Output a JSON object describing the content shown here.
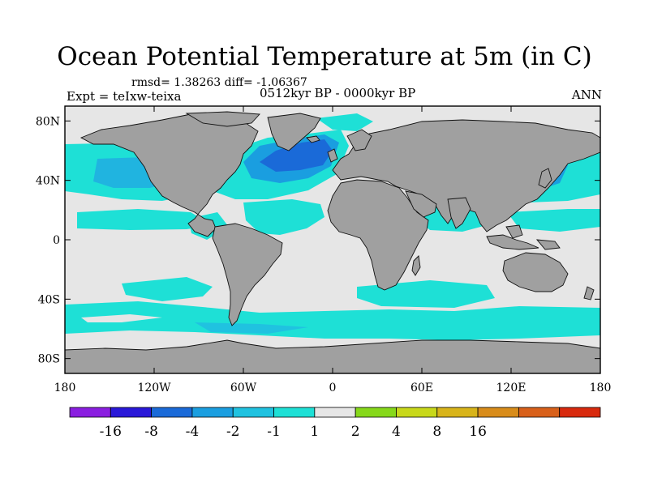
{
  "title": "Ocean Potential Temperature at 5m (in C)",
  "stats": "rmsd= 1.38263 diff= -1.06367",
  "experiment": "Expt = teIxw-teixa",
  "period": "0512kyr BP - 0000kyr BP",
  "season": "ANN",
  "map": {
    "projection": "cylindrical-equidistant",
    "lon_range": [
      -180,
      180
    ],
    "lat_range": [
      -90,
      90
    ],
    "land_color": "#a0a0a0",
    "no_change_color": "#e6e6e6",
    "x_ticks": [
      {
        "lon": -180,
        "label": "180"
      },
      {
        "lon": -120,
        "label": "120W"
      },
      {
        "lon": -60,
        "label": "60W"
      },
      {
        "lon": 0,
        "label": "0"
      },
      {
        "lon": 60,
        "label": "60E"
      },
      {
        "lon": 120,
        "label": "120E"
      },
      {
        "lon": 180,
        "label": "180"
      }
    ],
    "y_ticks": [
      {
        "lat": 80,
        "label": "80N"
      },
      {
        "lat": 40,
        "label": "40N"
      },
      {
        "lat": 0,
        "label": "0"
      },
      {
        "lat": -40,
        "label": "40S"
      },
      {
        "lat": -80,
        "label": "80S"
      }
    ]
  },
  "colorbar": {
    "colors": [
      "#8a1ee0",
      "#2a18d8",
      "#1a6ad8",
      "#1a9ee0",
      "#20c2e0",
      "#1ee0d6",
      "#e6e6e6",
      "#86d81a",
      "#c8d81a",
      "#d8b41a",
      "#d88c1a",
      "#d8601a",
      "#d82a0e"
    ],
    "labels": [
      "-16",
      "-8",
      "-4",
      "-2",
      "-1",
      "1",
      "2",
      "4",
      "8",
      "16"
    ]
  }
}
